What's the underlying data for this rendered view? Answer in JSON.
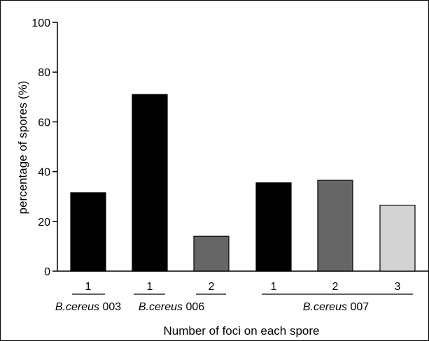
{
  "chart_data": {
    "type": "bar",
    "title": "",
    "xlabel": "Number of foci on each spore",
    "ylabel": "percentage of spores (%)",
    "ylim": [
      0,
      100
    ],
    "yticks": [
      "0",
      "20",
      "40",
      "60",
      "80",
      "100"
    ],
    "categories": [
      "1",
      "1",
      "2",
      "1",
      "2",
      "3"
    ],
    "values": [
      31.5,
      71,
      14,
      35.5,
      36.5,
      26.5
    ],
    "bar_colors": [
      "#000000",
      "#000000",
      "#666666",
      "#000000",
      "#666666",
      "#d3d3d3"
    ],
    "groups": [
      {
        "name_italic": "B.cereus",
        "name_suffix": " 003"
      },
      {
        "name_italic": "B.cereus",
        "name_suffix": " 006"
      },
      {
        "name_italic": "B.cereus",
        "name_suffix": " 007"
      }
    ],
    "grid": false,
    "legend": "none"
  }
}
